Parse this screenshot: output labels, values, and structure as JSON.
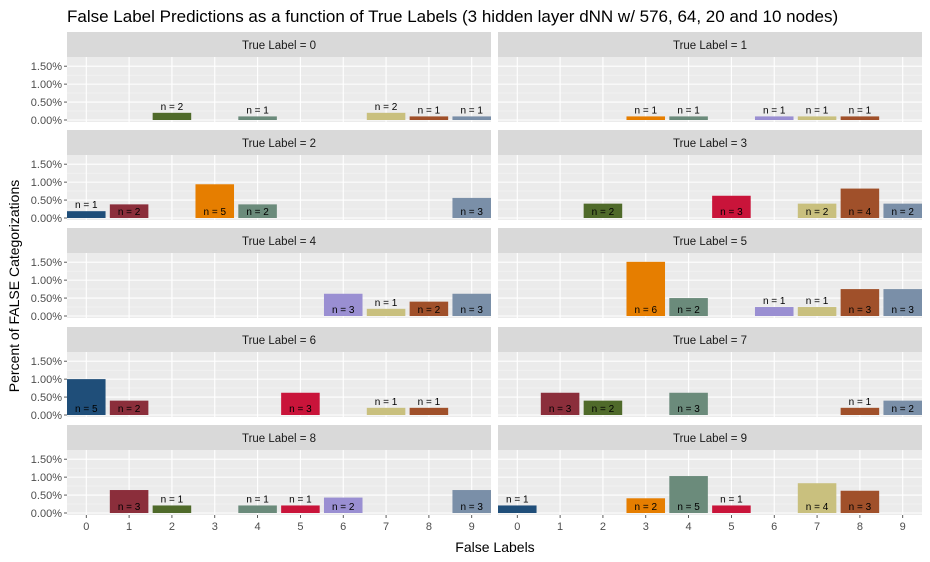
{
  "chart_data": {
    "type": "bar",
    "title": "False Label Predictions as a function of True Labels (3 hidden layer dNN w/ 576, 64, 20 and 10 nodes)",
    "xlabel": "False Labels",
    "ylabel": "Percent of FALSE Categorizations",
    "categories": [
      "0",
      "1",
      "2",
      "3",
      "4",
      "5",
      "6",
      "7",
      "8",
      "9"
    ],
    "y_ticks": [
      "0.00%",
      "0.50%",
      "1.00%",
      "1.50%"
    ],
    "ylim": [
      0,
      1.7
    ],
    "grid": true,
    "legend": "none",
    "colors": {
      "0": "#1f4e79",
      "1": "#8b2e3b",
      "2": "#4f6a2a",
      "3": "#e67e00",
      "4": "#6b8b7b",
      "5": "#c9143a",
      "6": "#9a8fd2",
      "7": "#c9c07e",
      "8": "#a0502a",
      "9": "#7a8fa8"
    },
    "facets": [
      {
        "strip": "True Label = 0",
        "bars": [
          {
            "x": "2",
            "value": 0.2,
            "label": "n = 2"
          },
          {
            "x": "4",
            "value": 0.1,
            "label": "n = 1"
          },
          {
            "x": "7",
            "value": 0.2,
            "label": "n = 2"
          },
          {
            "x": "8",
            "value": 0.1,
            "label": "n = 1"
          },
          {
            "x": "9",
            "value": 0.1,
            "label": "n = 1"
          }
        ]
      },
      {
        "strip": "True Label = 1",
        "bars": [
          {
            "x": "3",
            "value": 0.1,
            "label": "n = 1"
          },
          {
            "x": "4",
            "value": 0.1,
            "label": "n = 1"
          },
          {
            "x": "6",
            "value": 0.1,
            "label": "n = 1"
          },
          {
            "x": "7",
            "value": 0.1,
            "label": "n = 1"
          },
          {
            "x": "8",
            "value": 0.1,
            "label": "n = 1"
          }
        ]
      },
      {
        "strip": "True Label = 2",
        "bars": [
          {
            "x": "0",
            "value": 0.19,
            "label": "n = 1"
          },
          {
            "x": "1",
            "value": 0.38,
            "label": "n = 2"
          },
          {
            "x": "3",
            "value": 0.94,
            "label": "n = 5"
          },
          {
            "x": "4",
            "value": 0.38,
            "label": "n = 2"
          },
          {
            "x": "9",
            "value": 0.56,
            "label": "n = 3"
          }
        ]
      },
      {
        "strip": "True Label = 3",
        "bars": [
          {
            "x": "2",
            "value": 0.4,
            "label": "n = 2"
          },
          {
            "x": "5",
            "value": 0.62,
            "label": "n = 3"
          },
          {
            "x": "7",
            "value": 0.4,
            "label": "n = 2"
          },
          {
            "x": "8",
            "value": 0.82,
            "label": "n = 4"
          },
          {
            "x": "9",
            "value": 0.4,
            "label": "n = 2"
          }
        ]
      },
      {
        "strip": "True Label = 4",
        "bars": [
          {
            "x": "6",
            "value": 0.62,
            "label": "n = 3"
          },
          {
            "x": "7",
            "value": 0.2,
            "label": "n = 1"
          },
          {
            "x": "8",
            "value": 0.4,
            "label": "n = 2"
          },
          {
            "x": "9",
            "value": 0.62,
            "label": "n = 3"
          }
        ]
      },
      {
        "strip": "True Label = 5",
        "bars": [
          {
            "x": "3",
            "value": 1.51,
            "label": "n = 6"
          },
          {
            "x": "4",
            "value": 0.5,
            "label": "n = 2"
          },
          {
            "x": "6",
            "value": 0.25,
            "label": "n = 1"
          },
          {
            "x": "7",
            "value": 0.25,
            "label": "n = 1"
          },
          {
            "x": "8",
            "value": 0.75,
            "label": "n = 3"
          },
          {
            "x": "9",
            "value": 0.75,
            "label": "n = 3"
          }
        ]
      },
      {
        "strip": "True Label = 6",
        "bars": [
          {
            "x": "0",
            "value": 1.0,
            "label": "n = 5"
          },
          {
            "x": "1",
            "value": 0.4,
            "label": "n = 2"
          },
          {
            "x": "5",
            "value": 0.62,
            "label": "n = 3"
          },
          {
            "x": "7",
            "value": 0.2,
            "label": "n = 1"
          },
          {
            "x": "8",
            "value": 0.2,
            "label": "n = 1"
          }
        ]
      },
      {
        "strip": "True Label = 7",
        "bars": [
          {
            "x": "1",
            "value": 0.62,
            "label": "n = 3"
          },
          {
            "x": "2",
            "value": 0.4,
            "label": "n = 2"
          },
          {
            "x": "4",
            "value": 0.62,
            "label": "n = 3"
          },
          {
            "x": "8",
            "value": 0.2,
            "label": "n = 1"
          },
          {
            "x": "9",
            "value": 0.4,
            "label": "n = 2"
          }
        ]
      },
      {
        "strip": "True Label = 8",
        "bars": [
          {
            "x": "1",
            "value": 0.64,
            "label": "n = 3"
          },
          {
            "x": "2",
            "value": 0.21,
            "label": "n = 1"
          },
          {
            "x": "4",
            "value": 0.21,
            "label": "n = 1"
          },
          {
            "x": "5",
            "value": 0.21,
            "label": "n = 1"
          },
          {
            "x": "6",
            "value": 0.43,
            "label": "n = 2"
          },
          {
            "x": "9",
            "value": 0.64,
            "label": "n = 3"
          }
        ]
      },
      {
        "strip": "True Label = 9",
        "bars": [
          {
            "x": "0",
            "value": 0.21,
            "label": "n = 1"
          },
          {
            "x": "3",
            "value": 0.41,
            "label": "n = 2"
          },
          {
            "x": "4",
            "value": 1.03,
            "label": "n = 5"
          },
          {
            "x": "5",
            "value": 0.21,
            "label": "n = 1"
          },
          {
            "x": "7",
            "value": 0.83,
            "label": "n = 4"
          },
          {
            "x": "8",
            "value": 0.62,
            "label": "n = 3"
          }
        ]
      }
    ]
  }
}
